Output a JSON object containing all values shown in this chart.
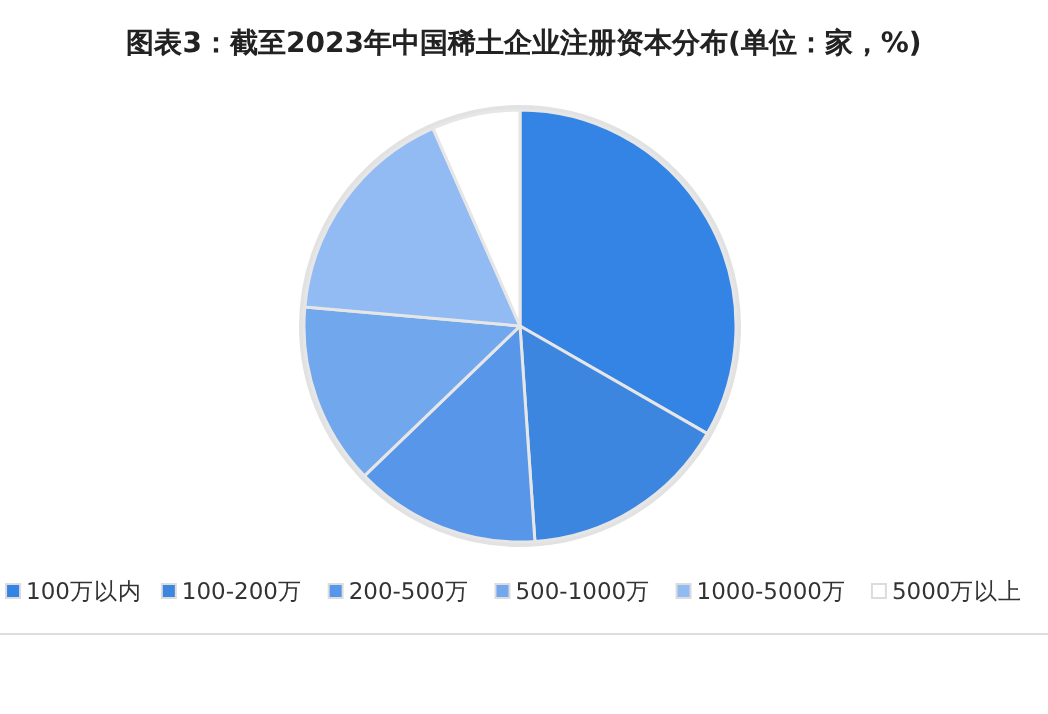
{
  "chart_data": {
    "type": "pie",
    "title": "图表3：截至2023年中国稀土企业注册资本分布(单位：家，%)",
    "categories": [
      "100万以内",
      "100-200万",
      "200-500万",
      "500-1000万",
      "1000-5000万",
      "5000万以上"
    ],
    "values": [
      33.3,
      15.6,
      13.9,
      13.6,
      17.0,
      6.6
    ],
    "colors": [
      "#3384e5",
      "#3d86e0",
      "#5796e8",
      "#71a7ec",
      "#91bbf2",
      "#ffffff"
    ],
    "legend": "bottom"
  }
}
